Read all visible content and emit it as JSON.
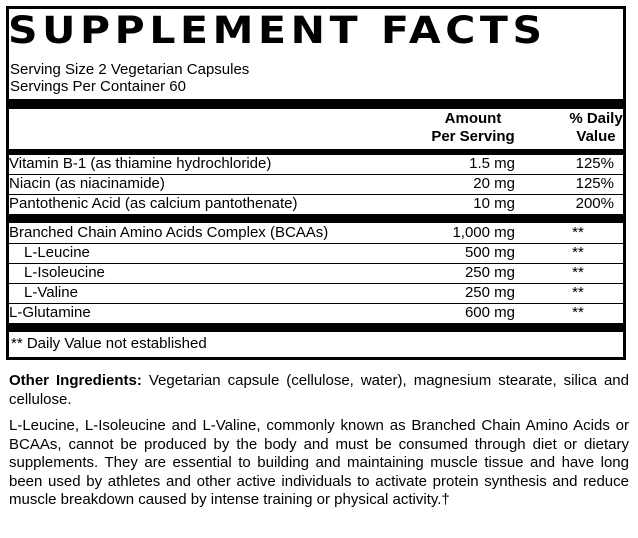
{
  "label": {
    "title": "SUPPLEMENT FACTS",
    "serving_size": "Serving Size 2 Vegetarian Capsules",
    "servings_per_container": "Servings Per Container 60",
    "header_amount_line1": "Amount",
    "header_amount_line2": "Per Serving",
    "header_dv_line1": "% Daily",
    "header_dv_line2": "Value",
    "vitamins": [
      {
        "name": "Vitamin B-1 (as thiamine hydrochloride)",
        "amount": "1.5 mg",
        "dv": "125%"
      },
      {
        "name": "Niacin (as niacinamide)",
        "amount": "20 mg",
        "dv": "125%"
      },
      {
        "name": "Pantothenic Acid (as calcium pantothenate)",
        "amount": "10 mg",
        "dv": "200%"
      }
    ],
    "amino": [
      {
        "name": "Branched Chain Amino Acids Complex (BCAAs)",
        "amount": "1,000 mg",
        "dv": "**"
      },
      {
        "name": "L-Leucine",
        "amount": "500 mg",
        "dv": "**"
      },
      {
        "name": "L-Isoleucine",
        "amount": "250 mg",
        "dv": "**"
      },
      {
        "name": "L-Valine",
        "amount": "250 mg",
        "dv": "**"
      },
      {
        "name": "L-Glutamine",
        "amount": "600 mg",
        "dv": "**"
      }
    ],
    "footnote": "** Daily Value not established"
  },
  "other_ingredients": {
    "label": "Other Ingredients:",
    "text": " Vegetarian capsule (cellulose, water), magnesium stearate, silica and cellulose."
  },
  "description": "L-Leucine, L-Isoleucine and L-Valine, commonly known as Branched Chain Amino Acids or BCAAs, cannot be produced by the body and must be consumed through diet or dietary supplements. They are essential to building and maintaining muscle tissue and have long been used by athletes and other active individuals to activate protein synthesis and reduce muscle breakdown caused by intense training or physical activity.†"
}
